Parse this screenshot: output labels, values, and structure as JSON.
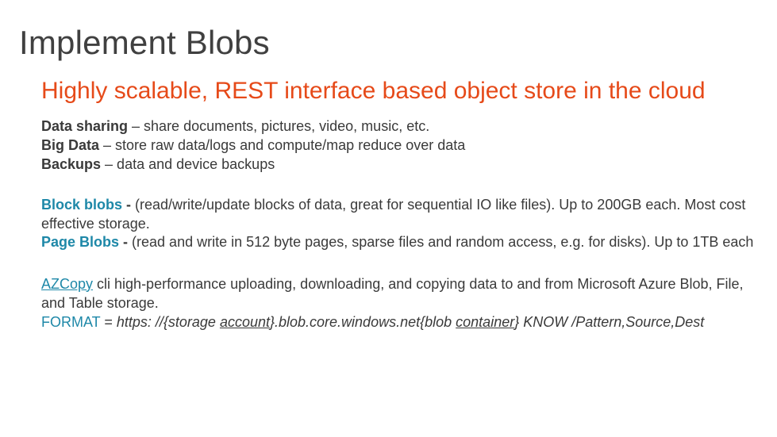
{
  "title": "Implement Blobs",
  "subtitle": "Highly scalable, REST interface based object store in the cloud",
  "body": {
    "line1_bold": "Data sharing",
    "line1_rest": " – share documents, pictures, video, music, etc.",
    "line2_bold": "Big Data",
    "line2_rest": " – store raw data/logs and compute/map reduce over data",
    "line3_bold": "Backups",
    "line3_rest": " – data and device backups"
  },
  "blobtypes": {
    "block_label": "Block blobs",
    "block_dash": " - ",
    "block_desc": " (read/write/update blocks of data, great for sequential IO like files). Up to 200GB each. Most cost effective storage.",
    "page_label": "Page Blobs",
    "page_dash": " - ",
    "page_desc": "(read and write in 512 byte pages, sparse files and random access, e.g. for disks). Up to 1TB each"
  },
  "azcopy": {
    "link": "AZCopy",
    "desc": " cli  high-performance uploading, downloading, and copying data to and from Microsoft Azure Blob, File, and Table storage.",
    "format_label": "FORMAT",
    "eq": " = ",
    "url_pre": "https: //{storage ",
    "url_account": "account",
    "url_mid": "}.blob.core.windows.net{blob ",
    "url_container": "container",
    "url_post": "} KNOW /Pattern,Source,Dest"
  },
  "colors": {
    "title": "#404040",
    "accent": "#e64a19",
    "link": "#1e88a8",
    "body": "#3a3a3a",
    "background": "#ffffff"
  }
}
